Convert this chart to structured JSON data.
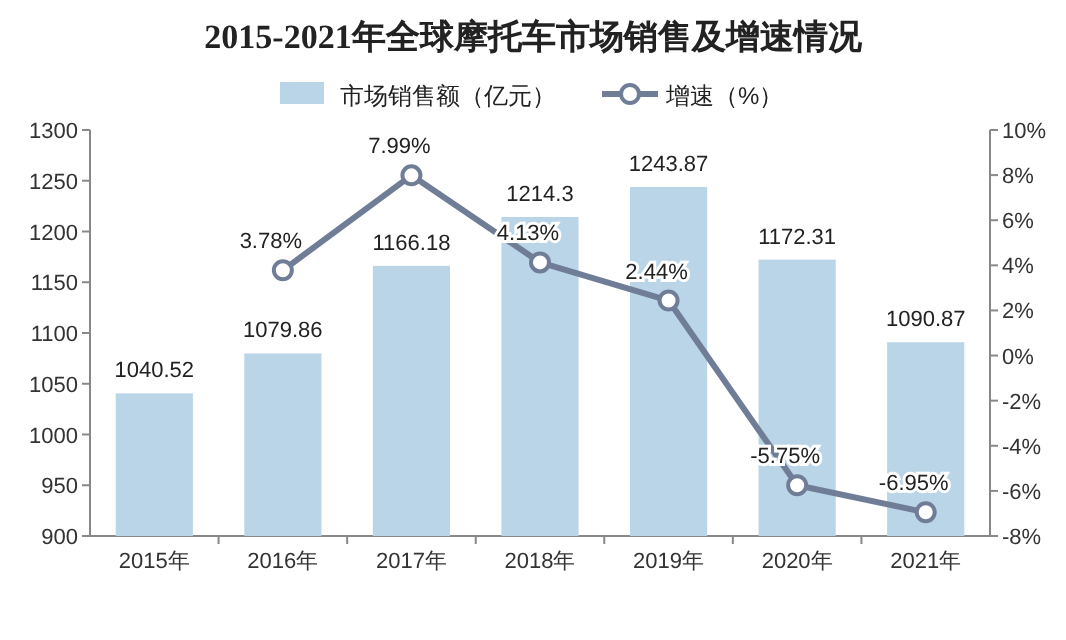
{
  "chart_data": {
    "type": "bar",
    "title": "2015-2021年全球摩托车市场销售及增速情况",
    "categories": [
      "2015年",
      "2016年",
      "2017年",
      "2018年",
      "2019年",
      "2020年",
      "2021年"
    ],
    "series": [
      {
        "name": "市场销售额（亿元）",
        "color": "#b9d5e7",
        "values": [
          1040.52,
          1079.86,
          1166.18,
          1214.3,
          1243.87,
          1172.31,
          1090.87
        ]
      },
      {
        "name": "增速（%）",
        "type": "line",
        "axis": "y2",
        "color": "#6f7d97",
        "marker": "circle",
        "values": [
          null,
          3.78,
          7.99,
          4.13,
          2.44,
          -5.75,
          -6.95
        ],
        "value_labels": [
          null,
          "3.78%",
          "7.99%",
          "4.13%",
          "2.44%",
          "-5.75%",
          "-6.95%"
        ]
      }
    ],
    "data_labels": true,
    "ylim": [
      900,
      1300
    ],
    "yticks": [
      900,
      950,
      1000,
      1050,
      1100,
      1150,
      1200,
      1250,
      1300
    ],
    "y2lim": [
      -8,
      10
    ],
    "y2ticks": [
      {
        "value": -8,
        "label": "-8%"
      },
      {
        "value": -6,
        "label": "-6%"
      },
      {
        "value": -4,
        "label": "-4%"
      },
      {
        "value": -2,
        "label": "-2%"
      },
      {
        "value": 0,
        "label": "0%"
      },
      {
        "value": 2,
        "label": "2%"
      },
      {
        "value": 4,
        "label": "4%"
      },
      {
        "value": 6,
        "label": "6%"
      },
      {
        "value": 8,
        "label": "8%"
      },
      {
        "value": 10,
        "label": "10%"
      }
    ],
    "legend": "top"
  }
}
